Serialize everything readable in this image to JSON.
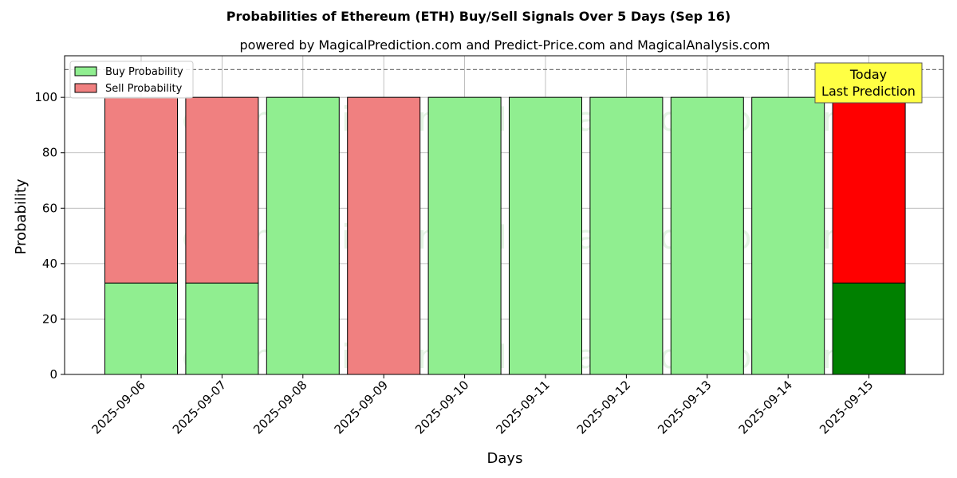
{
  "chart_data": {
    "type": "bar",
    "stacked": true,
    "title": "Probabilities of Ethereum (ETH) Buy/Sell Signals Over 5 Days (Sep 16)",
    "subtitle": "powered by MagicalPrediction.com and Predict-Price.com and MagicalAnalysis.com",
    "xlabel": "Days",
    "ylabel": "Probability",
    "ylim": [
      0,
      115
    ],
    "yticks": [
      0,
      20,
      40,
      60,
      80,
      100
    ],
    "threshold_line": 110,
    "grid": true,
    "legend_position": "top-left",
    "categories": [
      "2025-09-06",
      "2025-09-07",
      "2025-09-08",
      "2025-09-09",
      "2025-09-10",
      "2025-09-11",
      "2025-09-12",
      "2025-09-13",
      "2025-09-14",
      "2025-09-15"
    ],
    "series": [
      {
        "name": "Buy Probability",
        "color": "#90ee90",
        "highlight_color": "#008000",
        "values": [
          33,
          33,
          100,
          0,
          100,
          100,
          100,
          100,
          100,
          33
        ]
      },
      {
        "name": "Sell Probability",
        "color": "#f08080",
        "highlight_color": "#ff0000",
        "values": [
          67,
          67,
          0,
          100,
          0,
          0,
          0,
          0,
          0,
          67
        ]
      }
    ],
    "highlight_index": 9,
    "annotation": {
      "lines": [
        "Today",
        "Last Prediction"
      ],
      "color": "#ffff44"
    },
    "watermarks": [
      "MagicalAnalysis.com",
      "MagicalPrediction.com"
    ]
  }
}
